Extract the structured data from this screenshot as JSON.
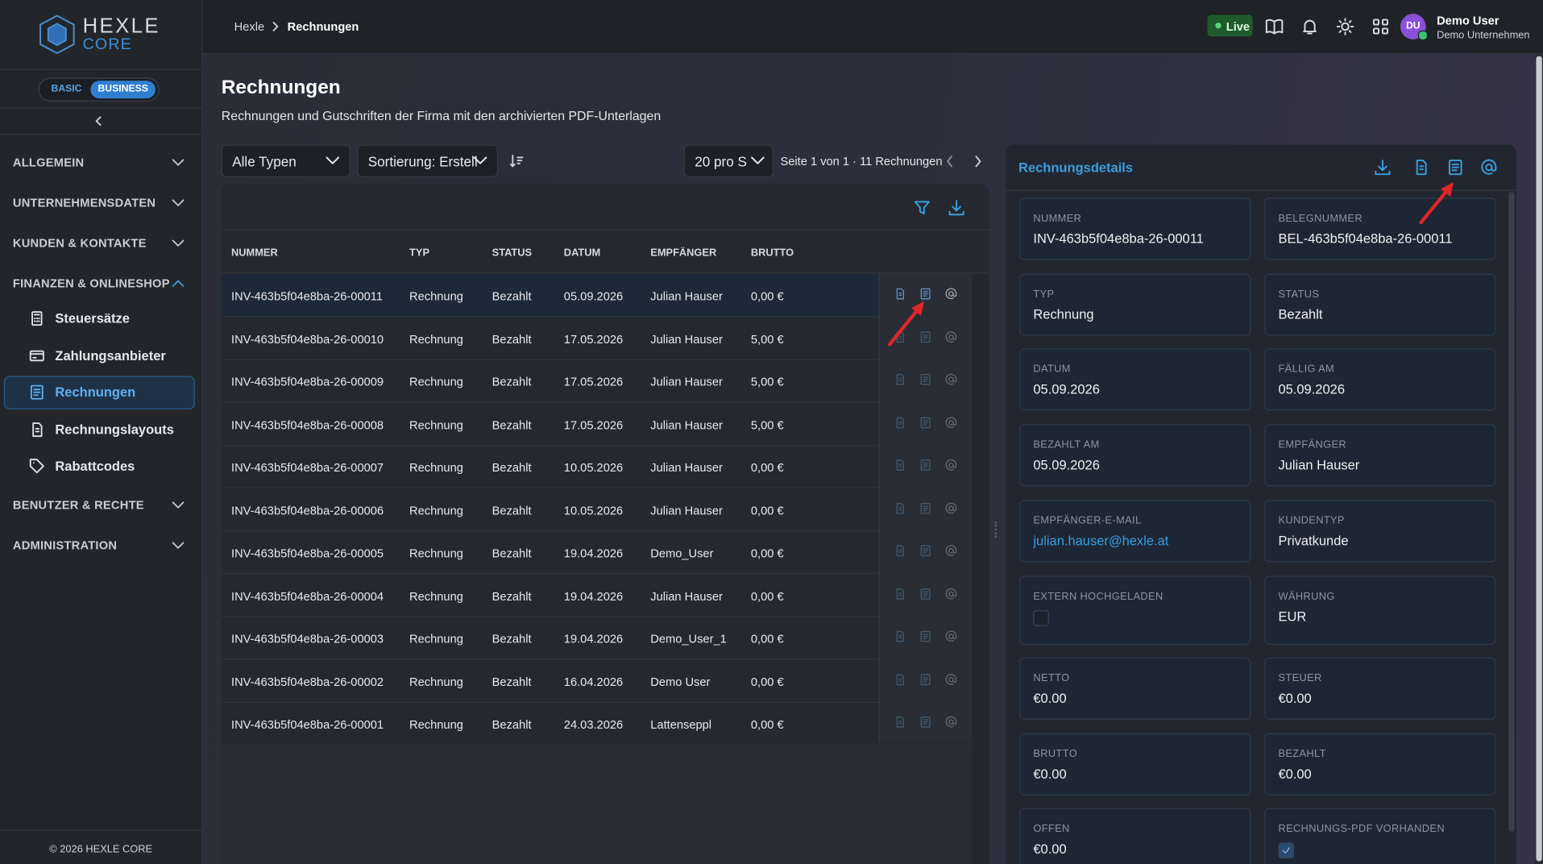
{
  "brand": {
    "name": "HEXLE",
    "sub": "CORE"
  },
  "plan_toggle": [
    "BASIC",
    "BUSINESS"
  ],
  "nav": [
    {
      "label": "ALLGEMEIN"
    },
    {
      "label": "UNTERNEHMENSDATEN"
    },
    {
      "label": "KUNDEN & KONTAKTE"
    },
    {
      "label": "FINANZEN & ONLINESHOP",
      "children": [
        "Steuersätze",
        "Zahlungsanbieter",
        "Rechnungen",
        "Rechnungslayouts",
        "Rabattcodes"
      ]
    },
    {
      "label": "BENUTZER & RECHTE"
    },
    {
      "label": "ADMINISTRATION"
    }
  ],
  "footer": "© 2026 HEXLE CORE",
  "breadcrumb": [
    "Hexle",
    "Rechnungen"
  ],
  "live": "Live",
  "user": {
    "initials": "DU",
    "name": "Demo User",
    "company": "Demo Unternehmen"
  },
  "page": {
    "title": "Rechnungen",
    "subtitle": "Rechnungen und Gutschriften der Firma mit den archivierten PDF-Unterlagen"
  },
  "filters": {
    "type": "Alle Typen",
    "sort": "Sortierung: Erstell",
    "page_size": "20 pro S",
    "pagination": "Seite 1 von 1 · 11 Rechnungen"
  },
  "table": {
    "columns": [
      "NUMMER",
      "TYP",
      "STATUS",
      "DATUM",
      "EMPFÄNGER",
      "BRUTTO"
    ],
    "rows": [
      [
        "INV-463b5f04e8ba-26-00011",
        "Rechnung",
        "Bezahlt",
        "05.09.2026",
        "Julian Hauser",
        "0,00 €"
      ],
      [
        "INV-463b5f04e8ba-26-00010",
        "Rechnung",
        "Bezahlt",
        "17.05.2026",
        "Julian Hauser",
        "5,00 €"
      ],
      [
        "INV-463b5f04e8ba-26-00009",
        "Rechnung",
        "Bezahlt",
        "17.05.2026",
        "Julian Hauser",
        "5,00 €"
      ],
      [
        "INV-463b5f04e8ba-26-00008",
        "Rechnung",
        "Bezahlt",
        "17.05.2026",
        "Julian Hauser",
        "5,00 €"
      ],
      [
        "INV-463b5f04e8ba-26-00007",
        "Rechnung",
        "Bezahlt",
        "10.05.2026",
        "Julian Hauser",
        "0,00 €"
      ],
      [
        "INV-463b5f04e8ba-26-00006",
        "Rechnung",
        "Bezahlt",
        "10.05.2026",
        "Julian Hauser",
        "0,00 €"
      ],
      [
        "INV-463b5f04e8ba-26-00005",
        "Rechnung",
        "Bezahlt",
        "19.04.2026",
        "Demo_User",
        "0,00 €"
      ],
      [
        "INV-463b5f04e8ba-26-00004",
        "Rechnung",
        "Bezahlt",
        "19.04.2026",
        "Julian Hauser",
        "0,00 €"
      ],
      [
        "INV-463b5f04e8ba-26-00003",
        "Rechnung",
        "Bezahlt",
        "19.04.2026",
        "Demo_User_1",
        "0,00 €"
      ],
      [
        "INV-463b5f04e8ba-26-00002",
        "Rechnung",
        "Bezahlt",
        "16.04.2026",
        "Demo User",
        "0,00 €"
      ],
      [
        "INV-463b5f04e8ba-26-00001",
        "Rechnung",
        "Bezahlt",
        "24.03.2026",
        "Lattenseppl",
        "0,00 €"
      ]
    ]
  },
  "details": {
    "title": "Rechnungsdetails",
    "fields": [
      {
        "label": "NUMMER",
        "value": "INV-463b5f04e8ba-26-00011"
      },
      {
        "label": "BELEGNUMMER",
        "value": "BEL-463b5f04e8ba-26-00011"
      },
      {
        "label": "TYP",
        "value": "Rechnung"
      },
      {
        "label": "STATUS",
        "value": "Bezahlt"
      },
      {
        "label": "DATUM",
        "value": "05.09.2026"
      },
      {
        "label": "FÄLLIG AM",
        "value": "05.09.2026"
      },
      {
        "label": "BEZAHLT AM",
        "value": "05.09.2026"
      },
      {
        "label": "EMPFÄNGER",
        "value": "Julian Hauser"
      },
      {
        "label": "EMPFÄNGER-E-MAIL",
        "value": "julian.hauser@hexle.at"
      },
      {
        "label": "KUNDENTYP",
        "value": "Privatkunde"
      },
      {
        "label": "EXTERN HOCHGELADEN",
        "checked": false
      },
      {
        "label": "WÄHRUNG",
        "value": "EUR"
      },
      {
        "label": "NETTO",
        "value": "€0.00"
      },
      {
        "label": "STEUER",
        "value": "€0.00"
      },
      {
        "label": "BRUTTO",
        "value": "€0.00"
      },
      {
        "label": "BEZAHLT",
        "value": "€0.00"
      },
      {
        "label": "OFFEN",
        "value": "€0.00"
      },
      {
        "label": "RECHNUNGS-PDF VORHANDEN",
        "checked": true
      }
    ]
  }
}
